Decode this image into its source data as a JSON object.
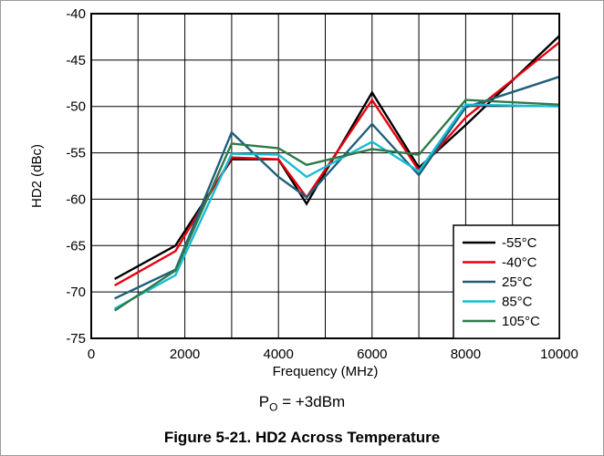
{
  "chart_data": {
    "type": "line",
    "caption": "Figure 5-21. HD2 Across Temperature",
    "condition_main": "P",
    "condition_sub": "O",
    "condition_rest": " = +3dBm",
    "xlabel": "Frequency (MHz)",
    "ylabel": "HD2 (dBc)",
    "xlim": [
      0,
      10000
    ],
    "ylim": [
      -75,
      -40
    ],
    "xticks": [
      0,
      2000,
      4000,
      6000,
      8000,
      10000
    ],
    "yticks": [
      -40,
      -45,
      -50,
      -55,
      -60,
      -65,
      -70,
      -75
    ],
    "grid": true,
    "legend_position": "bottom-right",
    "series": [
      {
        "name": "-55°C",
        "color": "#000000",
        "x": [
          500,
          1800,
          3000,
          4000,
          4600,
          6000,
          7000,
          8000,
          10000
        ],
        "y": [
          -68.6,
          -65.0,
          -55.7,
          -55.7,
          -60.5,
          -48.5,
          -56.6,
          -52.0,
          -42.4
        ]
      },
      {
        "name": "-40°C",
        "color": "#e8000d",
        "x": [
          500,
          1800,
          3000,
          4000,
          4600,
          6000,
          7000,
          8000,
          10000
        ],
        "y": [
          -69.3,
          -65.6,
          -55.5,
          -55.7,
          -59.8,
          -49.3,
          -56.9,
          -51.2,
          -43.1
        ]
      },
      {
        "name": "25°C",
        "color": "#1f5f7a",
        "x": [
          500,
          1800,
          3000,
          4000,
          4600,
          6000,
          7000,
          8000,
          10000
        ],
        "y": [
          -70.7,
          -67.6,
          -52.8,
          -57.6,
          -59.8,
          -51.9,
          -57.4,
          -50.1,
          -46.8
        ]
      },
      {
        "name": "85°C",
        "color": "#17bcd3",
        "x": [
          500,
          1800,
          3000,
          4000,
          4600,
          6000,
          7000,
          8000,
          10000
        ],
        "y": [
          -71.8,
          -68.2,
          -55.1,
          -55.2,
          -57.6,
          -53.8,
          -57.0,
          -49.8,
          -50.0
        ]
      },
      {
        "name": "105°C",
        "color": "#2e7a4a",
        "x": [
          500,
          1800,
          3000,
          4000,
          4600,
          6000,
          7000,
          8000,
          10000
        ],
        "y": [
          -72.0,
          -67.7,
          -54.0,
          -54.5,
          -56.3,
          -54.6,
          -55.2,
          -49.3,
          -49.8
        ]
      }
    ]
  }
}
